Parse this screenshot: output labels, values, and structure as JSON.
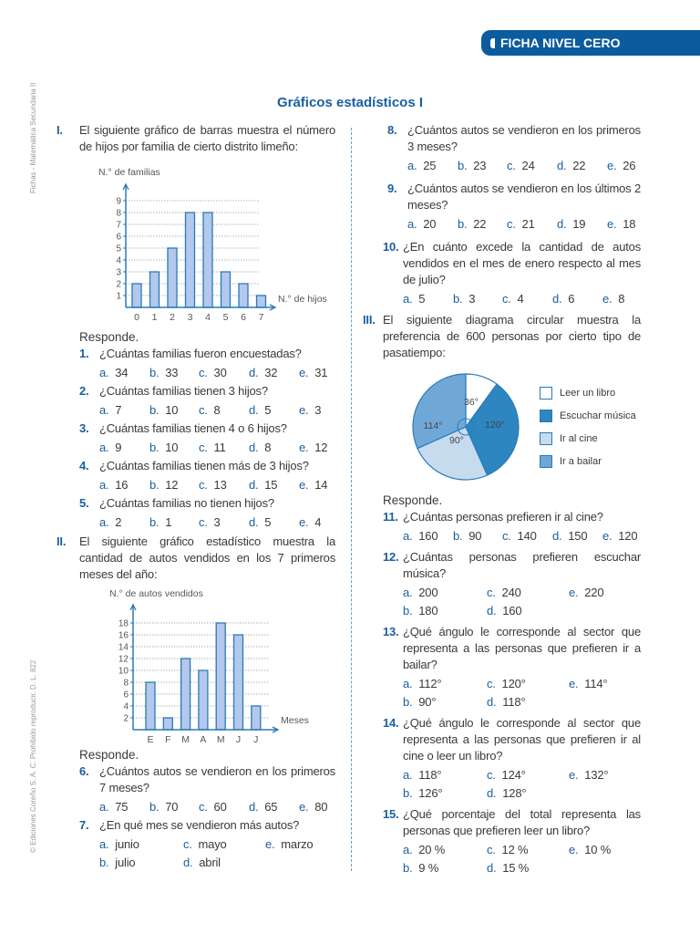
{
  "header": {
    "banner": "FICHA NIVEL CERO",
    "side_top": "Fichas - Matemática Secundaria II",
    "side_bottom": "© Ediciones Coreño S. A. C. Prohibido reproducir. D. L. 822",
    "title": "Gráficos estadísticos I",
    "responde": "Responde."
  },
  "sections": {
    "I": {
      "num": "I.",
      "text": "El siguiente gráfico de barras muestra el número de hijos por familia de cierto distrito limeño:"
    },
    "II": {
      "num": "II.",
      "text": "El siguiente gráfico estadístico muestra la cantidad de autos vendidos en los 7 primeros meses del año:"
    },
    "III": {
      "num": "III.",
      "text": "El siguiente diagrama circular muestra la preferencia de 600 personas por cierto tipo de pasatiempo:"
    }
  },
  "questions": [
    {
      "num": "1.",
      "text": "¿Cuántas familias fueron encuestadas?",
      "options": [
        [
          "a.",
          "34"
        ],
        [
          "b.",
          "33"
        ],
        [
          "c.",
          "30"
        ],
        [
          "d.",
          "32"
        ],
        [
          "e.",
          "31"
        ]
      ]
    },
    {
      "num": "2.",
      "text": "¿Cuántas familias tienen 3 hijos?",
      "options": [
        [
          "a.",
          "7"
        ],
        [
          "b.",
          "10"
        ],
        [
          "c.",
          "8"
        ],
        [
          "d.",
          "5"
        ],
        [
          "e.",
          "3"
        ]
      ]
    },
    {
      "num": "3.",
      "text": "¿Cuántas familias tienen 4 o 6 hijos?",
      "options": [
        [
          "a.",
          "9"
        ],
        [
          "b.",
          "10"
        ],
        [
          "c.",
          "11"
        ],
        [
          "d.",
          "8"
        ],
        [
          "e.",
          "12"
        ]
      ]
    },
    {
      "num": "4.",
      "text": "¿Cuántas familias tienen más de 3 hijos?",
      "options": [
        [
          "a.",
          "16"
        ],
        [
          "b.",
          "12"
        ],
        [
          "c.",
          "13"
        ],
        [
          "d.",
          "15"
        ],
        [
          "e.",
          "14"
        ]
      ]
    },
    {
      "num": "5.",
      "text": "¿Cuántas familias no tienen hijos?",
      "options": [
        [
          "a.",
          "2"
        ],
        [
          "b.",
          "1"
        ],
        [
          "c.",
          "3"
        ],
        [
          "d.",
          "5"
        ],
        [
          "e.",
          "4"
        ]
      ]
    },
    {
      "num": "6.",
      "text": "¿Cuántos autos se vendieron en los primeros 7 meses?",
      "options": [
        [
          "a.",
          "75"
        ],
        [
          "b.",
          "70"
        ],
        [
          "c.",
          "60"
        ],
        [
          "d.",
          "65"
        ],
        [
          "e.",
          "80"
        ]
      ]
    },
    {
      "num": "7.",
      "text": "¿En qué mes se vendieron más autos?",
      "options": [
        [
          "a.",
          "junio"
        ],
        [
          "c.",
          "mayo"
        ],
        [
          "e.",
          "marzo"
        ],
        [
          "b.",
          "julio"
        ],
        [
          "d.",
          "abril"
        ]
      ]
    },
    {
      "num": "8.",
      "text": "¿Cuántos autos se vendieron en los primeros 3 meses?",
      "options": [
        [
          "a.",
          "25"
        ],
        [
          "b.",
          "23"
        ],
        [
          "c.",
          "24"
        ],
        [
          "d.",
          "22"
        ],
        [
          "e.",
          "26"
        ]
      ]
    },
    {
      "num": "9.",
      "text": "¿Cuántos autos se vendieron en los últimos 2 meses?",
      "options": [
        [
          "a.",
          "20"
        ],
        [
          "b.",
          "22"
        ],
        [
          "c.",
          "21"
        ],
        [
          "d.",
          "19"
        ],
        [
          "e.",
          "18"
        ]
      ]
    },
    {
      "num": "10.",
      "text": "¿En cuánto excede la cantidad de autos vendidos en el mes de enero respecto al mes de julio?",
      "options": [
        [
          "a.",
          "5"
        ],
        [
          "b.",
          "3"
        ],
        [
          "c.",
          "4"
        ],
        [
          "d.",
          "6"
        ],
        [
          "e.",
          "8"
        ]
      ]
    },
    {
      "num": "11.",
      "text": "¿Cuántas personas prefieren ir al cine?",
      "options": [
        [
          "a.",
          "160"
        ],
        [
          "b.",
          "90"
        ],
        [
          "c.",
          "140"
        ],
        [
          "d.",
          "150"
        ],
        [
          "e.",
          "120"
        ]
      ]
    },
    {
      "num": "12.",
      "text": "¿Cuántas personas prefieren escuchar música?",
      "options": [
        [
          "a.",
          "200"
        ],
        [
          "c.",
          "240"
        ],
        [
          "e.",
          "220"
        ],
        [
          "b.",
          "180"
        ],
        [
          "d.",
          "160"
        ]
      ]
    },
    {
      "num": "13.",
      "text": "¿Qué ángulo le corresponde al sector que representa a las personas que prefieren ir a bailar?",
      "options": [
        [
          "a.",
          "112°"
        ],
        [
          "c.",
          "120°"
        ],
        [
          "e.",
          "114°"
        ],
        [
          "b.",
          "90°"
        ],
        [
          "d.",
          "118°"
        ]
      ]
    },
    {
      "num": "14.",
      "text": "¿Qué ángulo le corresponde al sector que representa a las personas que prefieren ir al cine o leer un libro?",
      "options": [
        [
          "a.",
          "118°"
        ],
        [
          "c.",
          "124°"
        ],
        [
          "e.",
          "132°"
        ],
        [
          "b.",
          "126°"
        ],
        [
          "d.",
          "128°"
        ]
      ]
    },
    {
      "num": "15.",
      "text": "¿Qué porcentaje del total representa las personas que prefieren leer un libro?",
      "options": [
        [
          "a.",
          "20 %"
        ],
        [
          "c.",
          "12 %"
        ],
        [
          "e.",
          "10 %"
        ],
        [
          "b.",
          "9 %"
        ],
        [
          "d.",
          "15 %"
        ]
      ]
    }
  ],
  "chart_data": [
    {
      "type": "bar",
      "ylabel": "N.° de familias",
      "xlabel": "N.° de hijos",
      "categories": [
        "0",
        "1",
        "2",
        "3",
        "4",
        "5",
        "6",
        "7"
      ],
      "values": [
        2,
        3,
        5,
        8,
        8,
        3,
        2,
        1
      ],
      "yticks": [
        1,
        2,
        3,
        4,
        5,
        6,
        7,
        8,
        9
      ],
      "ylim": [
        0,
        9
      ],
      "grid": true,
      "color": "#b3c8ec"
    },
    {
      "type": "bar",
      "ylabel": "N.° de autos vendidos",
      "xlabel": "Meses",
      "categories": [
        "E",
        "F",
        "M",
        "A",
        "M",
        "J",
        "J"
      ],
      "values": [
        8,
        2,
        12,
        10,
        18,
        16,
        4
      ],
      "yticks": [
        2,
        4,
        6,
        8,
        10,
        12,
        14,
        16,
        18
      ],
      "ylim": [
        0,
        18
      ],
      "grid": true,
      "color": "#b3c8ec"
    },
    {
      "type": "pie",
      "total": 600,
      "slices": [
        {
          "name": "Leer un libro",
          "angle": 36,
          "label": "36°",
          "color": "#ffffff"
        },
        {
          "name": "Escuchar música",
          "angle": 120,
          "label": "120°",
          "color": "#2e86c1"
        },
        {
          "name": "Ir al cine",
          "angle": 90,
          "label": "90°",
          "color": "#c6dcee"
        },
        {
          "name": "Ir a bailar",
          "angle": 114,
          "label": "114°",
          "color": "#6fa8d6"
        }
      ],
      "legend": "right"
    }
  ]
}
